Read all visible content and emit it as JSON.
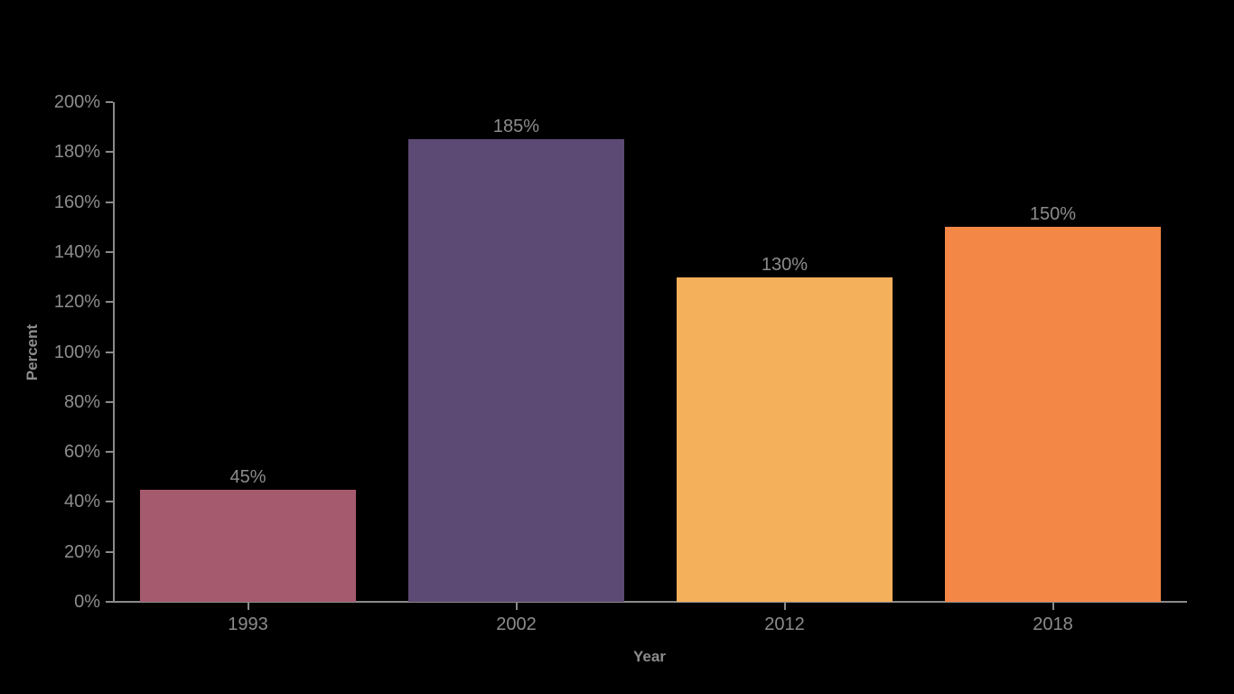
{
  "chart_data": {
    "type": "bar",
    "categories": [
      "1993",
      "2002",
      "2012",
      "2018"
    ],
    "values": [
      45,
      185,
      130,
      150
    ],
    "value_labels": [
      "45%",
      "185%",
      "130%",
      "150%"
    ],
    "bar_colors": [
      "#a55a6e",
      "#5c4a74",
      "#f4b05b",
      "#f28746"
    ],
    "title": "",
    "xlabel": "Year",
    "ylabel": "Percent",
    "ylim": [
      0,
      200
    ],
    "y_tick_step": 20,
    "y_tick_labels": [
      "0%",
      "20%",
      "40%",
      "60%",
      "80%",
      "100%",
      "120%",
      "140%",
      "160%",
      "180%",
      "200%"
    ],
    "grid": false,
    "legend": false,
    "background_color": "#000000",
    "text_color": "#8c8c8c",
    "axis_color": "#8a8a8a"
  }
}
